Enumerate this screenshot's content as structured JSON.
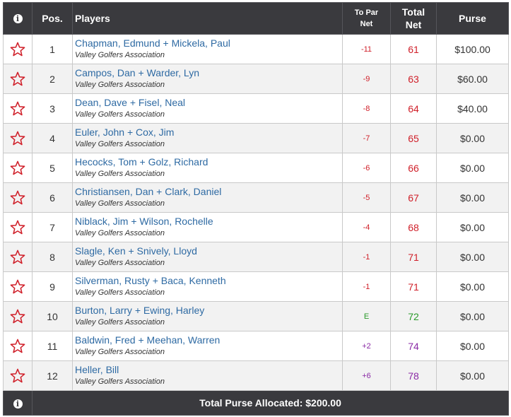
{
  "header": {
    "info_icon": "i",
    "pos_label": "Pos.",
    "players_label": "Players",
    "topar_label_line1": "To Par",
    "topar_label_line2": "Net",
    "total_label_line1": "Total",
    "total_label_line2": "Net",
    "purse_label": "Purse"
  },
  "colors": {
    "under_par": "#d0202a",
    "even_par": "#2a9a2a",
    "over_par": "#8a2aa5",
    "header_bg": "#3a3a3e",
    "player_link": "#2e6aa3",
    "star": "#d0202a"
  },
  "rows": [
    {
      "pos": "1",
      "players": "Chapman, Edmund + Mickela, Paul",
      "club": "Valley Golfers Association",
      "to_par": "-11",
      "total": "61",
      "purse": "$100.00",
      "status": "under"
    },
    {
      "pos": "2",
      "players": "Campos, Dan + Warder, Lyn",
      "club": "Valley Golfers Association",
      "to_par": "-9",
      "total": "63",
      "purse": "$60.00",
      "status": "under"
    },
    {
      "pos": "3",
      "players": "Dean, Dave + Fisel, Neal",
      "club": "Valley Golfers Association",
      "to_par": "-8",
      "total": "64",
      "purse": "$40.00",
      "status": "under"
    },
    {
      "pos": "4",
      "players": "Euler, John + Cox, Jim",
      "club": "Valley Golfers Association",
      "to_par": "-7",
      "total": "65",
      "purse": "$0.00",
      "status": "under"
    },
    {
      "pos": "5",
      "players": "Hecocks, Tom + Golz, Richard",
      "club": "Valley Golfers Association",
      "to_par": "-6",
      "total": "66",
      "purse": "$0.00",
      "status": "under"
    },
    {
      "pos": "6",
      "players": "Christiansen, Dan + Clark, Daniel",
      "club": "Valley Golfers Association",
      "to_par": "-5",
      "total": "67",
      "purse": "$0.00",
      "status": "under"
    },
    {
      "pos": "7",
      "players": "Niblack, Jim + Wilson, Rochelle",
      "club": "Valley Golfers Association",
      "to_par": "-4",
      "total": "68",
      "purse": "$0.00",
      "status": "under"
    },
    {
      "pos": "8",
      "players": "Slagle, Ken + Snively, Lloyd",
      "club": "Valley Golfers Association",
      "to_par": "-1",
      "total": "71",
      "purse": "$0.00",
      "status": "under"
    },
    {
      "pos": "9",
      "players": "Silverman, Rusty + Baca, Kenneth",
      "club": "Valley Golfers Association",
      "to_par": "-1",
      "total": "71",
      "purse": "$0.00",
      "status": "under"
    },
    {
      "pos": "10",
      "players": "Burton, Larry + Ewing, Harley",
      "club": "Valley Golfers Association",
      "to_par": "E",
      "total": "72",
      "purse": "$0.00",
      "status": "even"
    },
    {
      "pos": "11",
      "players": "Baldwin, Fred + Meehan, Warren",
      "club": "Valley Golfers Association",
      "to_par": "+2",
      "total": "74",
      "purse": "$0.00",
      "status": "over"
    },
    {
      "pos": "12",
      "players": "Heller, Bill",
      "club": "Valley Golfers Association",
      "to_par": "+6",
      "total": "78",
      "purse": "$0.00",
      "status": "over"
    }
  ],
  "row_icon": "star-outline-icon",
  "footer": {
    "info_icon": "i",
    "total_purse_label": "Total Purse Allocated: $200.00"
  }
}
